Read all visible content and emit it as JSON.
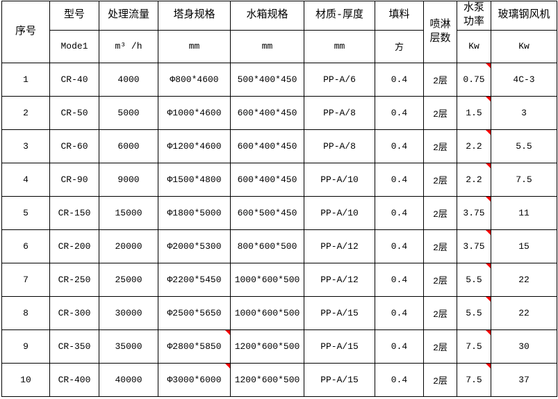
{
  "table": {
    "border_color": "#000000",
    "comment_marker_color": "#ff0000",
    "columns": [
      {
        "key": "no",
        "label": "序号",
        "unit": ""
      },
      {
        "key": "model",
        "label": "型号",
        "unit": "Mode1"
      },
      {
        "key": "flow",
        "label": "处理流量",
        "unit": "m³ /h"
      },
      {
        "key": "tower_spec",
        "label": "塔身规格",
        "unit": "mm"
      },
      {
        "key": "tank_spec",
        "label": "水箱规格",
        "unit": "mm"
      },
      {
        "key": "material_thickness",
        "label": "材质-厚度",
        "unit": "mm"
      },
      {
        "key": "filler",
        "label": "填料",
        "unit": "方"
      },
      {
        "key": "spray_layers",
        "label": "喷淋层数",
        "unit": ""
      },
      {
        "key": "pump_power",
        "label": "水泵功率",
        "unit": "Kw"
      },
      {
        "key": "fan",
        "label": "玻璃钢风机",
        "unit": "Kw"
      }
    ],
    "rows": [
      {
        "no": "1",
        "model": "CR-40",
        "flow": "4000",
        "tower_spec": "Φ800*4600",
        "tank_spec": "500*400*450",
        "material_thickness": "PP-A/6",
        "filler": "0.4",
        "spray_layers": "2层",
        "pump_power": "0.75",
        "fan": "4C-3"
      },
      {
        "no": "2",
        "model": "CR-50",
        "flow": "5000",
        "tower_spec": "Φ1000*4600",
        "tank_spec": "600*400*450",
        "material_thickness": "PP-A/8",
        "filler": "0.4",
        "spray_layers": "2层",
        "pump_power": "1.5",
        "fan": "3"
      },
      {
        "no": "3",
        "model": "CR-60",
        "flow": "6000",
        "tower_spec": "Φ1200*4600",
        "tank_spec": "600*400*450",
        "material_thickness": "PP-A/8",
        "filler": "0.4",
        "spray_layers": "2层",
        "pump_power": "2.2",
        "fan": "5.5"
      },
      {
        "no": "4",
        "model": "CR-90",
        "flow": "9000",
        "tower_spec": "Φ1500*4800",
        "tank_spec": "600*400*450",
        "material_thickness": "PP-A/10",
        "filler": "0.4",
        "spray_layers": "2层",
        "pump_power": "2.2",
        "fan": "7.5"
      },
      {
        "no": "5",
        "model": "CR-150",
        "flow": "15000",
        "tower_spec": "Φ1800*5000",
        "tank_spec": "600*500*450",
        "material_thickness": "PP-A/10",
        "filler": "0.4",
        "spray_layers": "2层",
        "pump_power": "3.75",
        "fan": "11"
      },
      {
        "no": "6",
        "model": "CR-200",
        "flow": "20000",
        "tower_spec": "Φ2000*5300",
        "tank_spec": "800*600*500",
        "material_thickness": "PP-A/12",
        "filler": "0.4",
        "spray_layers": "2层",
        "pump_power": "3.75",
        "fan": "15"
      },
      {
        "no": "7",
        "model": "CR-250",
        "flow": "25000",
        "tower_spec": "Φ2200*5450",
        "tank_spec": "1000*600*500",
        "material_thickness": "PP-A/12",
        "filler": "0.4",
        "spray_layers": "2层",
        "pump_power": "5.5",
        "fan": "22"
      },
      {
        "no": "8",
        "model": "CR-300",
        "flow": "30000",
        "tower_spec": "Φ2500*5650",
        "tank_spec": "1000*600*500",
        "material_thickness": "PP-A/15",
        "filler": "0.4",
        "spray_layers": "2层",
        "pump_power": "5.5",
        "fan": "22"
      },
      {
        "no": "9",
        "model": "CR-350",
        "flow": "35000",
        "tower_spec": "Φ2800*5850",
        "tank_spec": "1200*600*500",
        "material_thickness": "PP-A/15",
        "filler": "0.4",
        "spray_layers": "2层",
        "pump_power": "7.5",
        "fan": "30"
      },
      {
        "no": "10",
        "model": "CR-400",
        "flow": "40000",
        "tower_spec": "Φ3000*6000",
        "tank_spec": "1200*600*500",
        "material_thickness": "PP-A/15",
        "filler": "0.4",
        "spray_layers": "2层",
        "pump_power": "7.5",
        "fan": "37"
      }
    ],
    "comment_markers": {
      "pump_power": [
        1,
        2,
        3,
        4,
        5,
        6,
        7,
        8,
        9,
        10
      ],
      "tower_spec": [
        9,
        10
      ]
    }
  }
}
